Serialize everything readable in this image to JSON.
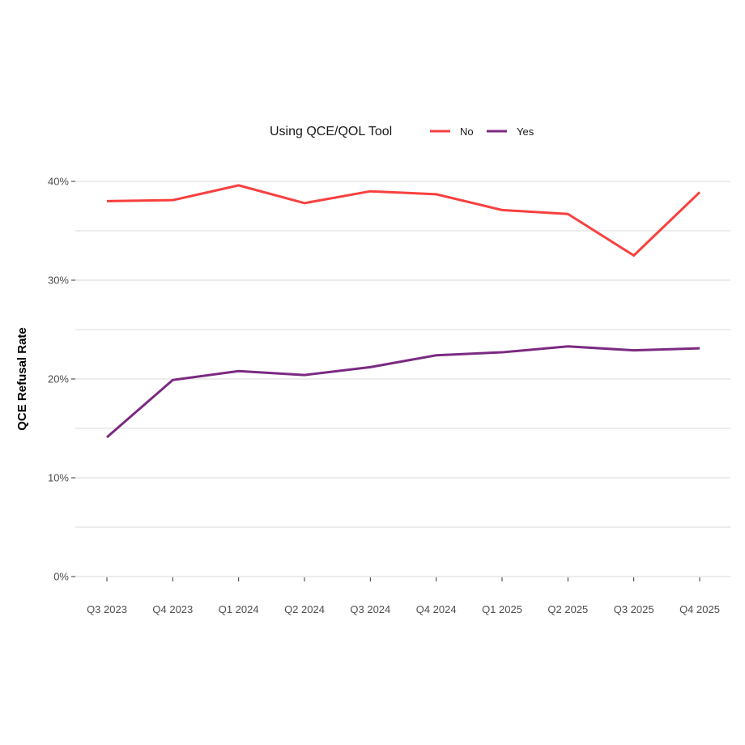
{
  "chart_data": {
    "type": "line",
    "title": "",
    "xlabel": "",
    "ylabel": "QCE Refusal Rate",
    "categories": [
      "Q3 2023",
      "Q4 2023",
      "Q1 2024",
      "Q2 2024",
      "Q3 2024",
      "Q4 2024",
      "Q1 2025",
      "Q2 2025",
      "Q3 2025",
      "Q4 2025"
    ],
    "ylim": [
      0,
      40
    ],
    "yticks": [
      0,
      10,
      20,
      30,
      40
    ],
    "ytick_labels": [
      "0%",
      "10%",
      "20%",
      "30%",
      "40%"
    ],
    "grid": true,
    "legend": {
      "title": "Using QCE/QOL Tool",
      "position": "top"
    },
    "series": [
      {
        "name": "No",
        "color": "#f8403f",
        "values": [
          38.0,
          38.1,
          39.6,
          37.8,
          39.0,
          38.7,
          37.1,
          36.7,
          32.5,
          38.9
        ]
      },
      {
        "name": "Yes",
        "color": "#7b2a82",
        "values": [
          14.1,
          19.9,
          20.8,
          20.4,
          21.2,
          22.4,
          22.7,
          23.3,
          22.9,
          23.1
        ]
      }
    ]
  }
}
